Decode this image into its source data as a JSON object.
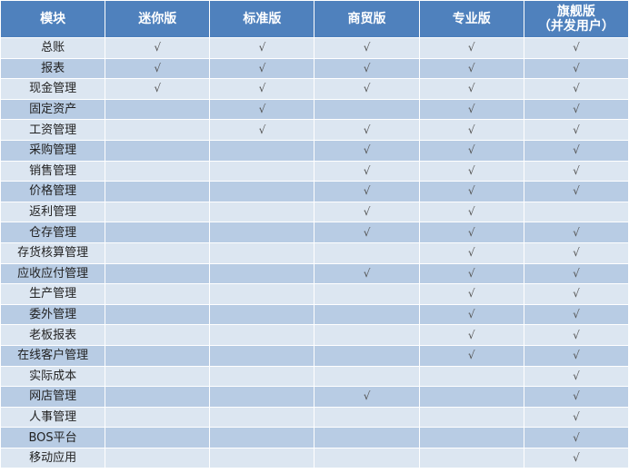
{
  "table": {
    "header": [
      "模块",
      "迷你版",
      "标准版",
      "商贸版",
      "专业版",
      "旗舰版\n（并发用户）"
    ],
    "rows": [
      [
        "总账",
        "√",
        "√",
        "√",
        "√",
        "√"
      ],
      [
        "报表",
        "√",
        "√",
        "√",
        "√",
        "√"
      ],
      [
        "现金管理",
        "√",
        "√",
        "√",
        "√",
        "√"
      ],
      [
        "固定资产",
        null,
        "√",
        null,
        "√",
        "√"
      ],
      [
        "工资管理",
        null,
        "√",
        "√",
        "√",
        "√"
      ],
      [
        "采购管理",
        null,
        null,
        "√",
        "√",
        "√"
      ],
      [
        "销售管理",
        null,
        null,
        "√",
        "√",
        "√"
      ],
      [
        "价格管理",
        null,
        null,
        "√",
        "√",
        "√"
      ],
      [
        "返利管理",
        null,
        null,
        "√",
        "√",
        null
      ],
      [
        "仓存管理",
        null,
        null,
        "√",
        "√",
        "√"
      ],
      [
        "存货核算管理",
        null,
        null,
        null,
        "√",
        "√"
      ],
      [
        "应收应付管理",
        null,
        null,
        "√",
        "√",
        "√"
      ],
      [
        "生产管理",
        null,
        null,
        null,
        "√",
        "√"
      ],
      [
        "委外管理",
        null,
        null,
        null,
        "√",
        "√"
      ],
      [
        "老板报表",
        null,
        null,
        null,
        "√",
        "√"
      ],
      [
        "在线客户管理",
        null,
        null,
        null,
        "√",
        "√"
      ],
      [
        "实际成本",
        null,
        null,
        null,
        null,
        "√"
      ],
      [
        "网店管理",
        null,
        null,
        "√",
        null,
        "√"
      ],
      [
        "人事管理",
        null,
        null,
        null,
        null,
        "√"
      ],
      [
        "BOS平台",
        null,
        null,
        null,
        null,
        "√"
      ],
      [
        "移动应用",
        null,
        null,
        null,
        null,
        "√"
      ]
    ]
  }
}
